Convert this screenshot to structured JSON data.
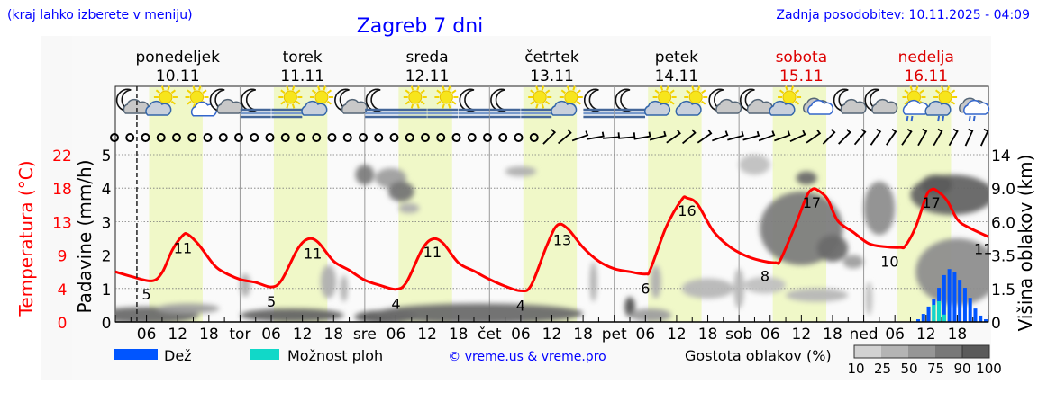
{
  "header": {
    "hint": "(kraj lahko izberete v meniju)",
    "title": "Zagreb 7 dni",
    "updated": "Zadnja posodobitev: 10.11.2025 - 04:09"
  },
  "colors": {
    "temperature": "#ff0000",
    "rain": "#0055ff",
    "showers": "#11d8c8",
    "daylight": "#f0f8c8",
    "link": "#0000ff",
    "weekend": "#dd0000"
  },
  "chart_data": {
    "type": "meteogram",
    "days": [
      {
        "name": "ponedeljek",
        "date": "10.11",
        "abbr": "",
        "weekend": false
      },
      {
        "name": "torek",
        "date": "11.11",
        "abbr": "tor",
        "weekend": false
      },
      {
        "name": "sreda",
        "date": "12.11",
        "abbr": "sre",
        "weekend": false
      },
      {
        "name": "četrtek",
        "date": "13.11",
        "abbr": "čet",
        "weekend": false
      },
      {
        "name": "petek",
        "date": "14.11",
        "abbr": "pet",
        "weekend": false
      },
      {
        "name": "sobota",
        "date": "15.11",
        "abbr": "sob",
        "weekend": true
      },
      {
        "name": "nedelja",
        "date": "16.11",
        "abbr": "ned",
        "weekend": true
      }
    ],
    "hour_ticks": [
      "06",
      "12",
      "18"
    ],
    "now_hour": 4.15,
    "daylight_hours": [
      6.5,
      16.8
    ],
    "y_left_temperature": {
      "label": "Temperatura (°C)",
      "ticks": [
        "0",
        "4",
        "9",
        "13",
        "18",
        "22"
      ],
      "range": [
        0,
        22
      ]
    },
    "y_left_precip": {
      "label": "Padavine (mm/h)",
      "ticks": [
        "0",
        "1",
        "2",
        "3",
        "4",
        "5"
      ],
      "range": [
        0,
        5
      ]
    },
    "y_right_cloud": {
      "label": "Višina oblakov (km)",
      "ticks": [
        "0",
        "1.5",
        "3.5",
        "6.0",
        "9.0",
        "14"
      ]
    },
    "grid": true,
    "temperature": [
      [
        0,
        6.6
      ],
      [
        3,
        6.0
      ],
      [
        7,
        5.4
      ],
      [
        9,
        6.5
      ],
      [
        11,
        9.5
      ],
      [
        13,
        11.4
      ],
      [
        14,
        11.5
      ],
      [
        16,
        10.2
      ],
      [
        19,
        7.5
      ],
      [
        21,
        6.5
      ],
      [
        24,
        5.6
      ],
      [
        27,
        5.2
      ],
      [
        30,
        4.6
      ],
      [
        32,
        5.5
      ],
      [
        35,
        9.5
      ],
      [
        37,
        10.9
      ],
      [
        39,
        10.5
      ],
      [
        42,
        8
      ],
      [
        45,
        6.8
      ],
      [
        48,
        5.5
      ],
      [
        51,
        4.8
      ],
      [
        54,
        4.3
      ],
      [
        56,
        5.2
      ],
      [
        59,
        9.5
      ],
      [
        61,
        10.9
      ],
      [
        63,
        10.4
      ],
      [
        66,
        7.8
      ],
      [
        69,
        6.7
      ],
      [
        72,
        5.6
      ],
      [
        75,
        4.7
      ],
      [
        78,
        4.1
      ],
      [
        80,
        4.8
      ],
      [
        83,
        10
      ],
      [
        85,
        12.7
      ],
      [
        87,
        12.3
      ],
      [
        90,
        9.8
      ],
      [
        93,
        8
      ],
      [
        96,
        7.0
      ],
      [
        99,
        6.6
      ],
      [
        102,
        6.3
      ],
      [
        103,
        7
      ],
      [
        106,
        12.5
      ],
      [
        109,
        16.1
      ],
      [
        110,
        16.3
      ],
      [
        112,
        15.5
      ],
      [
        115,
        12
      ],
      [
        118,
        10
      ],
      [
        121,
        8.8
      ],
      [
        124,
        8.1
      ],
      [
        127,
        7.8
      ],
      [
        128,
        8.2
      ],
      [
        131,
        13
      ],
      [
        133,
        16.5
      ],
      [
        134,
        17.4
      ],
      [
        135,
        17.4
      ],
      [
        137,
        16.2
      ],
      [
        139,
        13.3
      ],
      [
        142,
        11.8
      ],
      [
        145,
        10.3
      ],
      [
        148,
        9.9
      ],
      [
        151,
        9.8
      ],
      [
        152,
        10.0
      ],
      [
        154,
        12.5
      ],
      [
        156,
        16.5
      ],
      [
        157,
        17.4
      ],
      [
        158,
        17.3
      ],
      [
        160,
        16
      ],
      [
        162,
        13.5
      ],
      [
        164,
        12.5
      ],
      [
        168,
        11.2
      ]
    ],
    "temp_labels": [
      {
        "hour": 6,
        "value": "5",
        "kind": "min"
      },
      {
        "hour": 13,
        "value": "11",
        "kind": "max"
      },
      {
        "hour": 30,
        "value": "5",
        "kind": "min"
      },
      {
        "hour": 38,
        "value": "11",
        "kind": "max"
      },
      {
        "hour": 54,
        "value": "4",
        "kind": "min"
      },
      {
        "hour": 61,
        "value": "11",
        "kind": "max"
      },
      {
        "hour": 78,
        "value": "4",
        "kind": "min"
      },
      {
        "hour": 86,
        "value": "13",
        "kind": "max"
      },
      {
        "hour": 102,
        "value": "6",
        "kind": "min"
      },
      {
        "hour": 110,
        "value": "16",
        "kind": "max"
      },
      {
        "hour": 125,
        "value": "8",
        "kind": "min"
      },
      {
        "hour": 134,
        "value": "17",
        "kind": "max"
      },
      {
        "hour": 149,
        "value": "10",
        "kind": "min"
      },
      {
        "hour": 157,
        "value": "17",
        "kind": "max"
      },
      {
        "hour": 167,
        "value": "11",
        "kind": "end"
      }
    ],
    "precipitation": [
      [
        155,
        0.08,
        0
      ],
      [
        156,
        0.24,
        0
      ],
      [
        157,
        0.46,
        0
      ],
      [
        158,
        0.69,
        0.51
      ],
      [
        159,
        1.02,
        0.62
      ],
      [
        160,
        1.4,
        0.22
      ],
      [
        161,
        1.58,
        0
      ],
      [
        162,
        1.5,
        0
      ],
      [
        163,
        1.26,
        0
      ],
      [
        164,
        1.02,
        0
      ],
      [
        165,
        0.72,
        0
      ],
      [
        166,
        0.4,
        0
      ],
      [
        167,
        0.19,
        0
      ],
      [
        168,
        0.08,
        0
      ]
    ],
    "precipitation_columns": [
      "hour",
      "rain_mm_h",
      "showers_mm_h"
    ],
    "clouds": [
      [
        6,
        0.2,
        10,
        0.25,
        80
      ],
      [
        14,
        0.4,
        6,
        0.15,
        50
      ],
      [
        25,
        1.1,
        1,
        0.35,
        40
      ],
      [
        34,
        0.2,
        10,
        0.2,
        85
      ],
      [
        41,
        1.2,
        1.5,
        0.5,
        40
      ],
      [
        44,
        1.0,
        0.7,
        0.4,
        40
      ],
      [
        48,
        4.4,
        1.8,
        0.3,
        70
      ],
      [
        53,
        4.3,
        3,
        0.3,
        50
      ],
      [
        55,
        3.9,
        2.5,
        0.3,
        75
      ],
      [
        56.5,
        3.4,
        2,
        0.15,
        40
      ],
      [
        52,
        0.15,
        6,
        0.2,
        90
      ],
      [
        70,
        0.25,
        20,
        0.3,
        80
      ],
      [
        78,
        4.5,
        3,
        0.15,
        40
      ],
      [
        92,
        1.2,
        0.6,
        0.6,
        40
      ],
      [
        99,
        0.45,
        1,
        0.3,
        95
      ],
      [
        103,
        0.2,
        4,
        0.2,
        50
      ],
      [
        104,
        1.2,
        1,
        0.5,
        40
      ],
      [
        114,
        1.0,
        5,
        0.3,
        35
      ],
      [
        120,
        1.0,
        1,
        0.6,
        35
      ],
      [
        125,
        1.1,
        4,
        0.25,
        30
      ],
      [
        123,
        4.7,
        3,
        0.3,
        30
      ],
      [
        132,
        2.8,
        8,
        1.1,
        70
      ],
      [
        138,
        2.2,
        3,
        0.4,
        80
      ],
      [
        133,
        4.3,
        2,
        0.2,
        80
      ],
      [
        142,
        1.8,
        2,
        0.2,
        50
      ],
      [
        135,
        0.8,
        6,
        0.2,
        35
      ],
      [
        147,
        3.4,
        3,
        0.8,
        60
      ],
      [
        161,
        3.8,
        8,
        0.6,
        85
      ],
      [
        158,
        4.1,
        3,
        0.3,
        90
      ],
      [
        162,
        1.5,
        8,
        1,
        60
      ],
      [
        145,
        0.7,
        0.5,
        0.5,
        30
      ]
    ],
    "cloud_columns": [
      "hour",
      "height_axis_units",
      "spread_hours",
      "spread_units",
      "density_pct"
    ],
    "weather_icons": [
      "moon-cloud",
      "sun-cloud",
      "sun-small-cloud",
      "moon-cloud",
      "moon-fog",
      "sun-fog",
      "sun-cloud",
      "moon-cloud",
      "moon-fog",
      "sun-fog",
      "sun-fog",
      "moon-fog",
      "moon-fog",
      "sun-fog",
      "sun-cloud",
      "moon-fog",
      "moon-fog",
      "sun-cloud",
      "sun-cloud",
      "moon-cloud",
      "moon-cloud",
      "sun-cloud",
      "cloud",
      "moon-cloud",
      "moon-cloud",
      "sun-rain",
      "sun-cloud-rain",
      "cloud-rain"
    ],
    "wind": [
      "calm",
      "calm",
      "calm",
      "calm",
      "calm",
      "calm",
      "calm",
      "calm",
      "calm",
      "calm",
      "calm",
      "calm",
      "calm",
      "calm",
      "calm",
      "calm",
      "calm",
      "calm",
      "calm",
      "calm",
      "calm",
      "calm",
      "calm",
      "calm",
      "calm",
      "calm",
      "calm",
      "calm",
      225,
      230,
      250,
      260,
      265,
      265,
      260,
      255,
      235,
      230,
      235,
      250,
      255,
      255,
      250,
      250,
      245,
      235,
      225,
      225,
      220,
      215,
      215,
      215,
      210,
      210,
      210,
      205,
      205
    ]
  },
  "legend": {
    "rain": "Dež",
    "showers": "Možnost ploh",
    "copyright": "© vreme.us & vreme.pro",
    "cloud_density": "Gostota oblakov (%)",
    "density_levels": [
      "10",
      "25",
      "50",
      "75",
      "90",
      "100"
    ],
    "density_colors": [
      "#d2d2d2",
      "#b4b4b4",
      "#969696",
      "#787878",
      "#5a5a5a"
    ]
  }
}
